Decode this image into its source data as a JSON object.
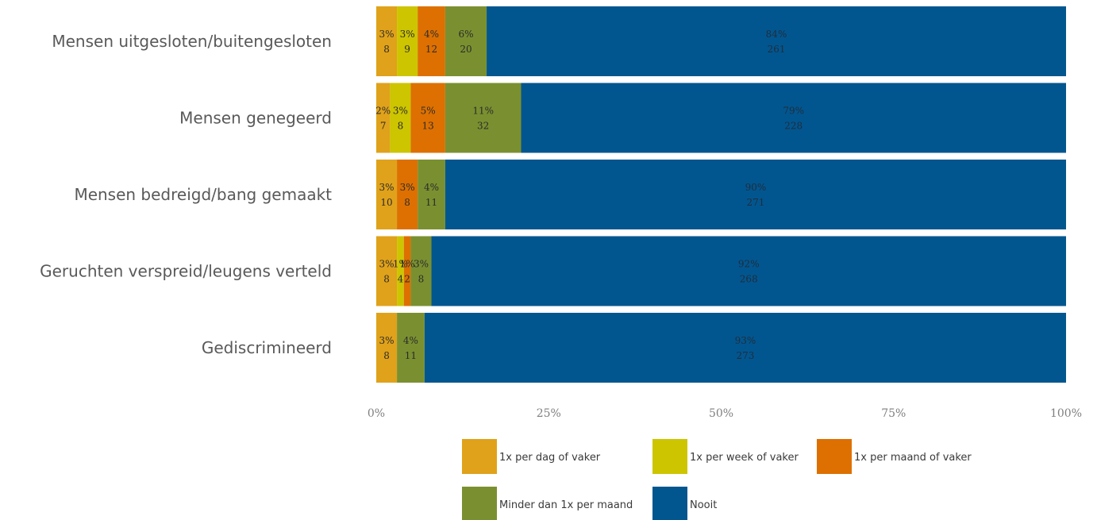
{
  "chart_data": {
    "type": "bar",
    "orientation": "horizontal",
    "stacked": "percent",
    "categories": [
      "Mensen uitgesloten/buitengesloten",
      "Mensen genegeerd",
      "Mensen bedreigd/bang gemaakt",
      "Geruchten verspreid/leugens verteld",
      "Gediscrimineerd"
    ],
    "series": [
      {
        "name": "1x per dag of vaker",
        "color": "#E0A21A",
        "percent_labels": [
          "3%",
          "2%",
          "3%",
          "3%",
          "3%"
        ],
        "values": [
          3,
          2,
          3,
          3,
          3
        ],
        "counts": [
          8,
          7,
          10,
          8,
          8
        ]
      },
      {
        "name": "1x per week of vaker",
        "color": "#CCC500",
        "percent_labels": [
          "3%",
          "3%",
          "",
          "1%",
          ""
        ],
        "values": [
          3,
          3,
          0,
          1,
          0
        ],
        "counts": [
          9,
          8,
          null,
          4,
          null
        ]
      },
      {
        "name": "1x per maand of vaker",
        "color": "#DD7000",
        "percent_labels": [
          "4%",
          "5%",
          "3%",
          "1%",
          ""
        ],
        "values": [
          4,
          5,
          3,
          1,
          0
        ],
        "counts": [
          12,
          13,
          8,
          2,
          null
        ]
      },
      {
        "name": "Minder dan 1x per maand",
        "color": "#7A9030",
        "percent_labels": [
          "6%",
          "11%",
          "4%",
          "3%",
          "4%"
        ],
        "values": [
          6,
          11,
          4,
          3,
          4
        ],
        "counts": [
          20,
          32,
          11,
          8,
          11
        ]
      },
      {
        "name": "Nooit",
        "color": "#02568F",
        "percent_labels": [
          "84%",
          "79%",
          "90%",
          "92%",
          "93%"
        ],
        "values": [
          84,
          79,
          90,
          92,
          93
        ],
        "counts": [
          261,
          228,
          271,
          268,
          273
        ]
      }
    ],
    "xaxis": {
      "ticks": [
        "0%",
        "25%",
        "50%",
        "75%",
        "100%"
      ],
      "range": [
        0,
        100
      ]
    },
    "grid": false,
    "legend_position": "bottom"
  }
}
